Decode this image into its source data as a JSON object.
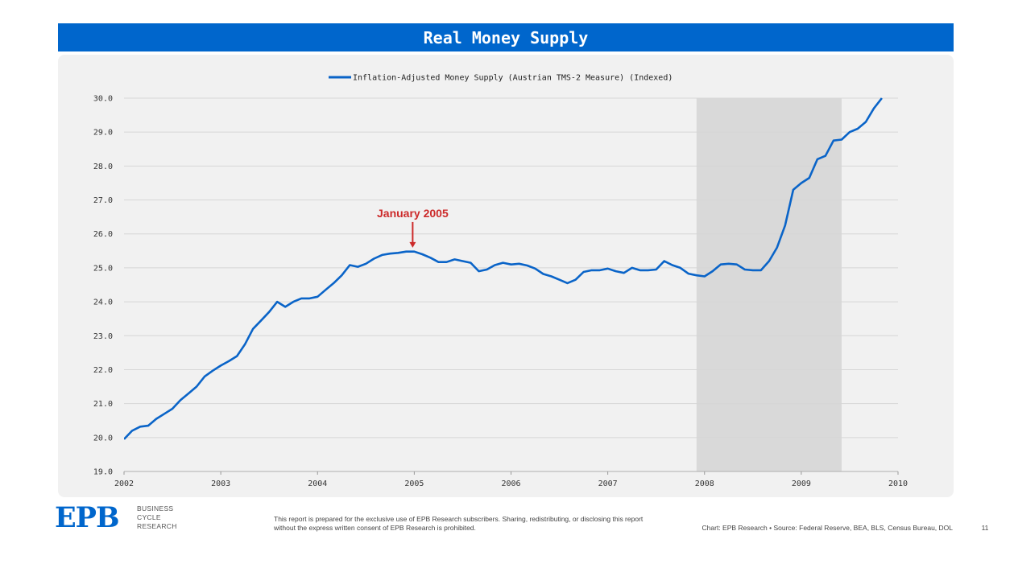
{
  "header": {
    "title": "Real Money Supply"
  },
  "colors": {
    "brand": "#0066cc",
    "line": "#0a64c8",
    "shade": "#d9d9d9",
    "annotation": "#cc2a2a"
  },
  "chart_data": {
    "type": "line",
    "title": "Real Money Supply",
    "legend": "Inflation-Adjusted Money Supply (Austrian TMS-2 Measure) (Indexed)",
    "legend_position": "top-center",
    "xlim": [
      2002,
      2010
    ],
    "ylim": [
      19,
      30
    ],
    "x_ticks": [
      "2002",
      "2003",
      "2004",
      "2005",
      "2006",
      "2007",
      "2008",
      "2009",
      "2010"
    ],
    "y_ticks": [
      "19.0",
      "20.0",
      "21.0",
      "22.0",
      "23.0",
      "24.0",
      "25.0",
      "26.0",
      "27.0",
      "28.0",
      "29.0",
      "30.0"
    ],
    "recession": {
      "start": 2007.917,
      "end": 2009.417
    },
    "annotation": {
      "text": "January 2005",
      "x": 2005.0,
      "y": 25.45
    },
    "series": [
      {
        "name": "Inflation-Adjusted Money Supply (Austrian TMS-2 Measure) (Indexed)",
        "x": [
          2002.0,
          2002.083,
          2002.167,
          2002.25,
          2002.333,
          2002.417,
          2002.5,
          2002.583,
          2002.667,
          2002.75,
          2002.833,
          2002.917,
          2003.0,
          2003.083,
          2003.167,
          2003.25,
          2003.333,
          2003.417,
          2003.5,
          2003.583,
          2003.667,
          2003.75,
          2003.833,
          2003.917,
          2004.0,
          2004.083,
          2004.167,
          2004.25,
          2004.333,
          2004.417,
          2004.5,
          2004.583,
          2004.667,
          2004.75,
          2004.833,
          2004.917,
          2005.0,
          2005.083,
          2005.167,
          2005.25,
          2005.333,
          2005.417,
          2005.5,
          2005.583,
          2005.667,
          2005.75,
          2005.833,
          2005.917,
          2006.0,
          2006.083,
          2006.167,
          2006.25,
          2006.333,
          2006.417,
          2006.5,
          2006.583,
          2006.667,
          2006.75,
          2006.833,
          2006.917,
          2007.0,
          2007.083,
          2007.167,
          2007.25,
          2007.333,
          2007.417,
          2007.5,
          2007.583,
          2007.667,
          2007.75,
          2007.833,
          2007.917,
          2008.0,
          2008.083,
          2008.167,
          2008.25,
          2008.333,
          2008.417,
          2008.5,
          2008.583,
          2008.667,
          2008.75,
          2008.833,
          2008.917,
          2009.0,
          2009.083,
          2009.167,
          2009.25,
          2009.333,
          2009.417,
          2009.5,
          2009.583,
          2009.667,
          2009.75,
          2009.833
        ],
        "y": [
          19.95,
          20.2,
          20.32,
          20.35,
          20.55,
          20.7,
          20.85,
          21.1,
          21.3,
          21.5,
          21.8,
          21.97,
          22.12,
          22.25,
          22.4,
          22.75,
          23.2,
          23.45,
          23.7,
          24.0,
          23.85,
          24.0,
          24.1,
          24.1,
          24.15,
          24.35,
          24.55,
          24.78,
          25.08,
          25.03,
          25.12,
          25.27,
          25.38,
          25.42,
          25.44,
          25.48,
          25.48,
          25.4,
          25.3,
          25.17,
          25.17,
          25.25,
          25.2,
          25.15,
          24.9,
          24.95,
          25.08,
          25.15,
          25.1,
          25.12,
          25.07,
          24.98,
          24.82,
          24.75,
          24.65,
          24.55,
          24.65,
          24.88,
          24.93,
          24.93,
          24.98,
          24.9,
          24.85,
          25.0,
          24.93,
          24.93,
          24.95,
          25.2,
          25.08,
          25.0,
          24.83,
          24.78,
          24.75,
          24.9,
          25.1,
          25.12,
          25.1,
          24.95,
          24.93,
          24.93,
          25.2,
          25.6,
          26.25,
          27.3,
          27.5,
          27.65,
          28.2,
          28.3,
          28.75,
          28.78,
          29.0,
          29.1,
          29.3,
          29.7,
          30.0
        ]
      }
    ]
  },
  "footer": {
    "logo_text": "EPB",
    "logo_lines": [
      "BUSINESS",
      "CYCLE",
      "RESEARCH"
    ],
    "disclaimer": "This report is prepared for the exclusive use of EPB Research subscribers. Sharing, redistributing, or disclosing this report without the express written consent of EPB Research is prohibited.",
    "source": "Chart: EPB Research  •  Source: Federal Reserve, BEA, BLS, Census Bureau, DOL",
    "page_number": "11"
  }
}
